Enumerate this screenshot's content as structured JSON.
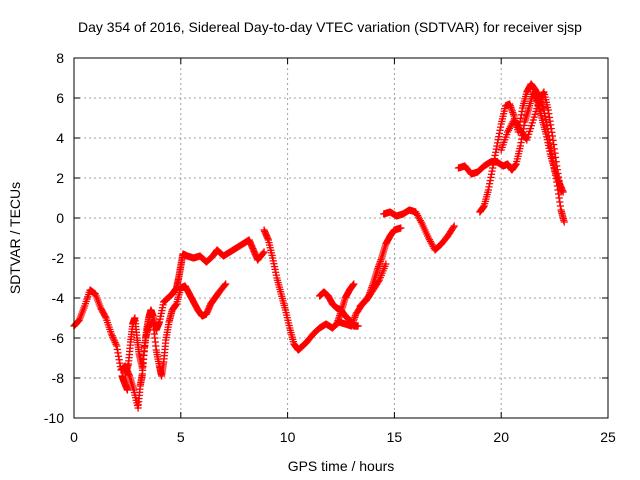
{
  "chart_data": {
    "type": "scatter",
    "title": "Day 354 of 2016, Sidereal Day-to-day VTEC variation (SDTVAR) for receiver sjsp",
    "xlabel": "GPS time / hours",
    "ylabel": "SDTVAR / TECUs",
    "xlim": [
      0,
      25
    ],
    "ylim": [
      -10,
      8
    ],
    "xticks": [
      0,
      5,
      10,
      15,
      20,
      25
    ],
    "yticks": [
      -10,
      -8,
      -6,
      -4,
      -2,
      0,
      2,
      4,
      6,
      8
    ],
    "grid": true,
    "marker": "plus",
    "color": "#ff0000",
    "series": [
      {
        "segments": [
          [
            [
              0.0,
              -5.4
            ],
            [
              0.25,
              -5.1
            ],
            [
              0.5,
              -4.4
            ],
            [
              0.75,
              -3.6
            ],
            [
              1.0,
              -3.8
            ],
            [
              1.25,
              -4.5
            ],
            [
              1.5,
              -5.0
            ],
            [
              1.75,
              -5.8
            ],
            [
              2.0,
              -6.4
            ],
            [
              2.2,
              -7.6
            ],
            [
              2.4,
              -7.4
            ],
            [
              2.6,
              -7.9
            ],
            [
              2.8,
              -8.6
            ],
            [
              3.0,
              -9.5
            ],
            [
              3.1,
              -8.4
            ],
            [
              3.2,
              -7.8
            ],
            [
              3.3,
              -6.5
            ],
            [
              3.4,
              -5.6
            ],
            [
              3.5,
              -5.0
            ],
            [
              3.6,
              -4.6
            ],
            [
              3.7,
              -4.9
            ],
            [
              3.85,
              -5.6
            ],
            [
              4.0,
              -5.2
            ],
            [
              4.2,
              -4.2
            ],
            [
              4.4,
              -4.0
            ],
            [
              4.6,
              -3.8
            ],
            [
              4.8,
              -3.5
            ],
            [
              4.9,
              -3.0
            ],
            [
              5.0,
              -2.4
            ],
            [
              5.1,
              -1.8
            ],
            [
              5.3,
              -1.9
            ],
            [
              5.6,
              -2.0
            ],
            [
              5.9,
              -1.9
            ],
            [
              6.2,
              -2.2
            ],
            [
              6.5,
              -1.9
            ],
            [
              6.7,
              -1.6
            ],
            [
              7.0,
              -1.9
            ],
            [
              7.3,
              -1.7
            ],
            [
              7.6,
              -1.5
            ],
            [
              7.9,
              -1.3
            ],
            [
              8.2,
              -1.1
            ],
            [
              8.4,
              -1.6
            ],
            [
              8.6,
              -2.1
            ],
            [
              8.9,
              -1.7
            ]
          ],
          [
            [
              2.4,
              -7.8
            ],
            [
              2.55,
              -7.3
            ],
            [
              2.65,
              -6.2
            ],
            [
              2.75,
              -5.3
            ],
            [
              2.85,
              -5.0
            ],
            [
              2.95,
              -6.0
            ],
            [
              3.05,
              -6.8
            ],
            [
              3.2,
              -7.5
            ],
            [
              3.35,
              -6.0
            ],
            [
              3.5,
              -5.4
            ],
            [
              3.7,
              -5.2
            ],
            [
              3.85,
              -6.6
            ],
            [
              4.0,
              -7.4
            ],
            [
              4.1,
              -7.9
            ],
            [
              4.2,
              -7.2
            ],
            [
              4.3,
              -6.1
            ],
            [
              4.45,
              -5.2
            ],
            [
              4.6,
              -4.6
            ],
            [
              4.8,
              -4.3
            ],
            [
              5.0,
              -3.5
            ],
            [
              5.2,
              -3.4
            ],
            [
              5.4,
              -3.8
            ],
            [
              5.6,
              -4.2
            ],
            [
              5.8,
              -4.6
            ],
            [
              6.0,
              -4.9
            ],
            [
              6.2,
              -4.8
            ],
            [
              6.4,
              -4.3
            ],
            [
              6.6,
              -4.0
            ],
            [
              6.8,
              -3.7
            ],
            [
              7.1,
              -3.3
            ]
          ],
          [
            [
              2.25,
              -7.9
            ],
            [
              2.35,
              -8.2
            ],
            [
              2.5,
              -8.6
            ]
          ],
          [
            [
              8.9,
              -0.6
            ],
            [
              9.1,
              -1.1
            ],
            [
              9.3,
              -2.0
            ],
            [
              9.5,
              -3.0
            ],
            [
              9.7,
              -3.8
            ],
            [
              9.9,
              -4.6
            ],
            [
              10.1,
              -5.5
            ],
            [
              10.3,
              -6.3
            ],
            [
              10.5,
              -6.6
            ],
            [
              10.7,
              -6.4
            ],
            [
              10.9,
              -6.2
            ],
            [
              11.2,
              -5.8
            ],
            [
              11.5,
              -5.5
            ],
            [
              11.8,
              -5.3
            ],
            [
              12.1,
              -5.5
            ],
            [
              12.4,
              -5.2
            ],
            [
              12.7,
              -5.3
            ],
            [
              13.0,
              -5.4
            ],
            [
              13.2,
              -4.8
            ],
            [
              13.5,
              -4.3
            ],
            [
              13.8,
              -3.9
            ],
            [
              14.0,
              -3.3
            ],
            [
              14.2,
              -2.6
            ],
            [
              14.4,
              -2.0
            ],
            [
              14.6,
              -1.3
            ],
            [
              14.8,
              -0.9
            ],
            [
              15.0,
              -0.6
            ],
            [
              15.3,
              -0.5
            ]
          ],
          [
            [
              11.5,
              -3.9
            ],
            [
              11.7,
              -3.7
            ],
            [
              11.9,
              -3.9
            ],
            [
              12.1,
              -4.3
            ],
            [
              12.3,
              -4.5
            ],
            [
              12.5,
              -4.6
            ],
            [
              12.7,
              -4.9
            ],
            [
              12.9,
              -5.1
            ],
            [
              13.1,
              -5.4
            ],
            [
              13.3,
              -5.4
            ]
          ],
          [
            [
              12.3,
              -5.3
            ],
            [
              12.5,
              -4.7
            ],
            [
              12.7,
              -4.0
            ],
            [
              12.9,
              -3.6
            ],
            [
              13.1,
              -3.3
            ]
          ],
          [
            [
              13.4,
              -4.4
            ],
            [
              13.7,
              -4.1
            ],
            [
              14.0,
              -3.6
            ],
            [
              14.3,
              -3.1
            ],
            [
              14.6,
              -2.3
            ]
          ],
          [
            [
              14.5,
              0.2
            ],
            [
              14.8,
              0.3
            ],
            [
              15.1,
              0.1
            ],
            [
              15.4,
              0.2
            ],
            [
              15.7,
              0.4
            ],
            [
              16.0,
              0.3
            ],
            [
              16.3,
              -0.3
            ],
            [
              16.6,
              -1.0
            ],
            [
              16.9,
              -1.6
            ],
            [
              17.2,
              -1.3
            ],
            [
              17.5,
              -0.9
            ],
            [
              17.8,
              -0.4
            ]
          ],
          [
            [
              18.0,
              2.5
            ],
            [
              18.3,
              2.6
            ],
            [
              18.6,
              2.2
            ],
            [
              18.9,
              2.3
            ],
            [
              19.2,
              2.6
            ],
            [
              19.5,
              2.8
            ],
            [
              19.8,
              2.8
            ],
            [
              20.1,
              2.6
            ],
            [
              20.3,
              2.7
            ],
            [
              20.5,
              2.4
            ],
            [
              20.7,
              2.7
            ],
            [
              20.9,
              3.6
            ],
            [
              21.1,
              4.8
            ],
            [
              21.3,
              5.5
            ],
            [
              21.5,
              6.3
            ],
            [
              21.7,
              5.8
            ],
            [
              21.9,
              5.0
            ],
            [
              22.1,
              4.2
            ],
            [
              22.3,
              3.2
            ],
            [
              22.5,
              2.4
            ],
            [
              22.7,
              1.8
            ],
            [
              22.9,
              1.3
            ]
          ],
          [
            [
              19.0,
              0.3
            ],
            [
              19.2,
              0.6
            ],
            [
              19.4,
              1.4
            ],
            [
              19.6,
              2.5
            ],
            [
              19.8,
              3.6
            ],
            [
              20.0,
              4.7
            ],
            [
              20.2,
              5.6
            ],
            [
              20.4,
              5.7
            ],
            [
              20.6,
              5.1
            ],
            [
              20.8,
              4.3
            ],
            [
              21.0,
              5.5
            ],
            [
              21.2,
              6.3
            ],
            [
              21.4,
              6.7
            ],
            [
              21.6,
              6.4
            ],
            [
              21.8,
              6.0
            ],
            [
              22.0,
              5.4
            ],
            [
              22.2,
              4.3
            ],
            [
              22.4,
              3.0
            ],
            [
              22.6,
              1.8
            ],
            [
              22.8,
              0.4
            ],
            [
              22.95,
              -0.2
            ]
          ],
          [
            [
              20.0,
              3.4
            ],
            [
              20.3,
              4.3
            ],
            [
              20.6,
              4.9
            ],
            [
              20.9,
              4.4
            ],
            [
              21.2,
              3.9
            ],
            [
              21.5,
              4.9
            ],
            [
              21.8,
              5.9
            ],
            [
              22.0,
              6.3
            ],
            [
              22.2,
              5.4
            ],
            [
              22.4,
              4.1
            ],
            [
              22.6,
              2.6
            ],
            [
              22.8,
              1.3
            ]
          ]
        ]
      }
    ]
  }
}
